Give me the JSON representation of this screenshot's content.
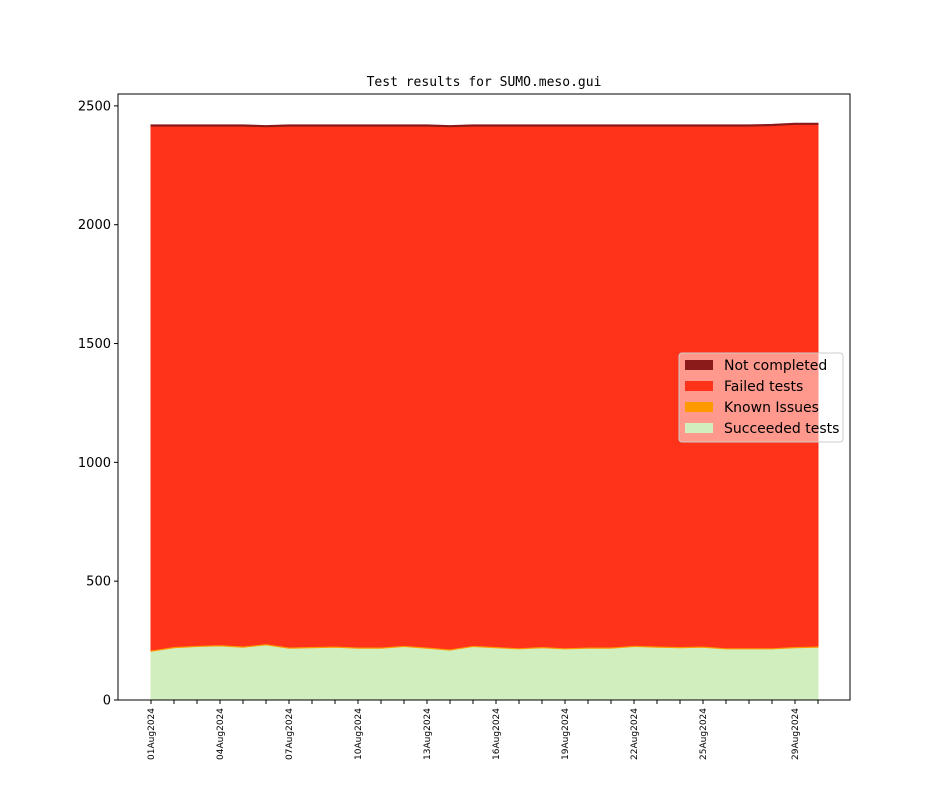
{
  "chart_data": {
    "type": "area",
    "stacked": true,
    "title": "Test results for SUMO.meso.gui",
    "xlabel": "",
    "ylabel": "",
    "ylim": [
      0,
      2550
    ],
    "yticks": [
      0,
      500,
      1000,
      1500,
      2000,
      2500
    ],
    "x": [
      "01Aug2024",
      "02Aug2024",
      "03Aug2024",
      "04Aug2024",
      "05Aug2024",
      "06Aug2024",
      "07Aug2024",
      "08Aug2024",
      "09Aug2024",
      "10Aug2024",
      "11Aug2024",
      "12Aug2024",
      "13Aug2024",
      "14Aug2024",
      "15Aug2024",
      "16Aug2024",
      "17Aug2024",
      "18Aug2024",
      "19Aug2024",
      "20Aug2024",
      "21Aug2024",
      "22Aug2024",
      "23Aug2024",
      "24Aug2024",
      "25Aug2024",
      "26Aug2024",
      "27Aug2024",
      "28Aug2024",
      "29Aug2024",
      "30Aug2024"
    ],
    "xtick_labels": [
      "01Aug2024",
      "04Aug2024",
      "07Aug2024",
      "10Aug2024",
      "13Aug2024",
      "16Aug2024",
      "19Aug2024",
      "22Aug2024",
      "25Aug2024",
      "29Aug2024"
    ],
    "legend_placement": "center-right",
    "series": [
      {
        "name": "Succeeded tests",
        "color": "#d0eebe",
        "values": [
          205,
          220,
          225,
          228,
          222,
          232,
          218,
          220,
          222,
          218,
          218,
          225,
          218,
          210,
          225,
          220,
          215,
          220,
          215,
          218,
          218,
          225,
          222,
          220,
          222,
          215,
          215,
          215,
          220,
          222
        ]
      },
      {
        "name": "Known Issues",
        "color": "#ff9900",
        "values": [
          5,
          5,
          5,
          5,
          5,
          5,
          5,
          5,
          5,
          5,
          5,
          5,
          5,
          5,
          5,
          5,
          5,
          5,
          5,
          5,
          5,
          5,
          5,
          5,
          5,
          5,
          5,
          5,
          5,
          5
        ]
      },
      {
        "name": "Failed tests",
        "color": "#ff321a",
        "values": [
          2205,
          2190,
          2185,
          2182,
          2188,
          2175,
          2192,
          2190,
          2188,
          2192,
          2192,
          2185,
          2192,
          2197,
          2185,
          2190,
          2195,
          2190,
          2195,
          2192,
          2192,
          2185,
          2188,
          2190,
          2188,
          2195,
          2195,
          2197,
          2197,
          2195
        ]
      },
      {
        "name": "Not completed",
        "color": "#8b1a1a",
        "values": [
          5,
          5,
          5,
          5,
          5,
          5,
          5,
          5,
          5,
          5,
          5,
          5,
          5,
          5,
          5,
          5,
          5,
          5,
          5,
          5,
          5,
          5,
          5,
          5,
          5,
          5,
          5,
          5,
          5,
          5
        ]
      }
    ],
    "legend_order": [
      "Not completed",
      "Failed tests",
      "Known Issues",
      "Succeeded tests"
    ]
  }
}
